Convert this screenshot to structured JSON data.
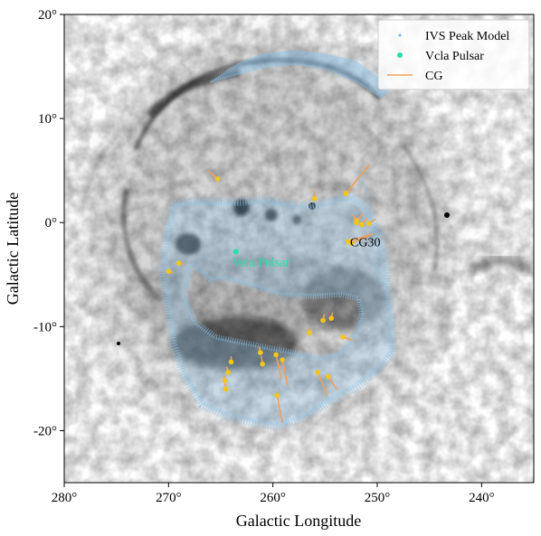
{
  "chart_data": {
    "type": "scatter",
    "title": "",
    "xlabel": "Galactic Longitude",
    "ylabel": "Galactic Latitude",
    "xlim": [
      280,
      235
    ],
    "ylim": [
      -25,
      20
    ],
    "x_ticks": [
      {
        "value": 280,
        "label": "280°"
      },
      {
        "value": 270,
        "label": "270°"
      },
      {
        "value": 260,
        "label": "260°"
      },
      {
        "value": 250,
        "label": "250°"
      },
      {
        "value": 240,
        "label": "240°"
      }
    ],
    "y_ticks": [
      {
        "value": 20,
        "label": "20°"
      },
      {
        "value": 10,
        "label": "10°"
      },
      {
        "value": 0,
        "label": "0°"
      },
      {
        "value": -10,
        "label": "-10°"
      },
      {
        "value": -20,
        "label": "-20°"
      }
    ],
    "grid": false,
    "legend_position": "top-right",
    "legend": [
      {
        "label": "IVS Peak Model",
        "marker": "small-dot",
        "color": "#7fc0f0"
      },
      {
        "label": "Vcla Pulsar",
        "marker": "dot",
        "color": "#22e0a8"
      },
      {
        "label": "CG",
        "marker": "line",
        "color": "#f2a05a"
      }
    ],
    "colors": {
      "ivs": "#88c4ef",
      "pulsar": "#22e0a8",
      "cg_head": "#f5c518",
      "cg_tail": "#f2a05a",
      "background_map": "#000000"
    },
    "series": [
      {
        "name": "Vcla Pulsar",
        "points": [
          {
            "l": 263.55,
            "b": -2.79
          }
        ]
      },
      {
        "name": "CG",
        "segments": [
          {
            "l": 265.3,
            "b": 4.2,
            "l2": 266.1,
            "b2": 4.9
          },
          {
            "l": 256.0,
            "b": 2.3,
            "l2": 256.1,
            "b2": 3.0
          },
          {
            "l": 253.0,
            "b": 2.8,
            "l2": 250.8,
            "b2": 5.5
          },
          {
            "l": 252.0,
            "b": 0.2,
            "l2": 251.4,
            "b2": 0.8
          },
          {
            "l": 251.5,
            "b": -0.2,
            "l2": 251.0,
            "b2": 0.4
          },
          {
            "l": 250.8,
            "b": -0.1,
            "l2": 250.2,
            "b2": 0.3
          },
          {
            "l": 252.0,
            "b": 0.0,
            "l2": 252.3,
            "b2": 0.7
          },
          {
            "l": 252.8,
            "b": -1.8,
            "l2": 250.4,
            "b2": -1.1
          },
          {
            "l": 252.5,
            "b": -2.0,
            "l2": 250.8,
            "b2": -1.3
          },
          {
            "l": 269.0,
            "b": -3.9,
            "l2": 268.5,
            "b2": -4.0
          },
          {
            "l": 270.0,
            "b": -4.7,
            "l2": 269.6,
            "b2": -4.8
          },
          {
            "l": 254.4,
            "b": -9.2,
            "l2": 254.3,
            "b2": -8.7
          },
          {
            "l": 255.2,
            "b": -9.4,
            "l2": 255.1,
            "b2": -8.9
          },
          {
            "l": 256.5,
            "b": -10.6,
            "l2": 256.6,
            "b2": -10.2
          },
          {
            "l": 253.3,
            "b": -11.0,
            "l2": 252.4,
            "b2": -11.3
          },
          {
            "l": 261.2,
            "b": -12.5,
            "l2": 261.3,
            "b2": -12.0
          },
          {
            "l": 261.0,
            "b": -13.6,
            "l2": 261.1,
            "b2": -12.9
          },
          {
            "l": 259.7,
            "b": -12.7,
            "l2": 259.2,
            "b2": -15.0
          },
          {
            "l": 259.1,
            "b": -13.2,
            "l2": 258.6,
            "b2": -15.6
          },
          {
            "l": 255.7,
            "b": -14.4,
            "l2": 254.8,
            "b2": -16.6
          },
          {
            "l": 254.7,
            "b": -14.8,
            "l2": 253.9,
            "b2": -16.0
          },
          {
            "l": 264.0,
            "b": -13.4,
            "l2": 264.0,
            "b2": -12.9
          },
          {
            "l": 264.3,
            "b": -14.4,
            "l2": 264.4,
            "b2": -13.9
          },
          {
            "l": 264.6,
            "b": -15.2,
            "l2": 264.7,
            "b2": -14.8
          },
          {
            "l": 264.5,
            "b": -16.0,
            "l2": 264.6,
            "b2": -15.5
          },
          {
            "l": 259.6,
            "b": -16.6,
            "l2": 259.1,
            "b2": -19.2
          }
        ]
      },
      {
        "name": "IVS Peak Model",
        "outer_ring": [
          [
            269.5,
            1.8
          ],
          [
            270.2,
            -1.0
          ],
          [
            270.6,
            -4.8
          ],
          [
            270.0,
            -8.5
          ],
          [
            269.6,
            -11.5
          ],
          [
            268.5,
            -14.8
          ],
          [
            266.8,
            -17.5
          ],
          [
            264.5,
            -18.6
          ],
          [
            262.0,
            -19.2
          ],
          [
            259.5,
            -19.6
          ],
          [
            257.0,
            -18.7
          ],
          [
            254.5,
            -17.2
          ],
          [
            252.0,
            -15.8
          ],
          [
            250.0,
            -14.3
          ],
          [
            248.5,
            -12.5
          ],
          [
            248.6,
            -9.5
          ],
          [
            249.0,
            -6.0
          ],
          [
            249.3,
            -3.0
          ],
          [
            249.8,
            -1.0
          ],
          [
            250.8,
            0.8
          ],
          [
            251.5,
            2.0
          ],
          [
            252.5,
            2.5
          ],
          [
            254.0,
            2.2
          ],
          [
            255.5,
            1.8
          ],
          [
            257.0,
            1.6
          ],
          [
            259.0,
            1.9
          ],
          [
            261.0,
            2.2
          ],
          [
            263.0,
            2.0
          ],
          [
            265.0,
            2.0
          ],
          [
            267.0,
            2.1
          ],
          [
            269.5,
            1.8
          ]
        ],
        "inner_ring": [
          [
            267.8,
            -4.0
          ],
          [
            266.0,
            -5.5
          ],
          [
            264.5,
            -5.4
          ],
          [
            262.0,
            -6.1
          ],
          [
            259.0,
            -7.0
          ],
          [
            256.0,
            -7.1
          ],
          [
            253.5,
            -6.9
          ],
          [
            251.8,
            -7.3
          ],
          [
            251.5,
            -8.8
          ],
          [
            252.0,
            -10.5
          ],
          [
            253.5,
            -12.5
          ],
          [
            255.5,
            -13.0
          ],
          [
            258.0,
            -12.5
          ],
          [
            260.5,
            -12.0
          ],
          [
            263.0,
            -11.5
          ],
          [
            265.5,
            -11.0
          ],
          [
            267.5,
            -9.5
          ],
          [
            268.5,
            -7.0
          ],
          [
            267.8,
            -4.0
          ]
        ],
        "top_arc": [
          [
            266.0,
            13.5
          ],
          [
            263.5,
            15.2
          ],
          [
            261.0,
            16.2
          ],
          [
            258.0,
            16.5
          ],
          [
            255.0,
            16.2
          ],
          [
            252.0,
            15.5
          ],
          [
            250.0,
            14.0
          ],
          [
            248.8,
            12.8
          ],
          [
            249.6,
            12.0
          ],
          [
            251.8,
            13.4
          ],
          [
            254.5,
            14.6
          ],
          [
            257.5,
            15.2
          ],
          [
            260.5,
            15.0
          ],
          [
            263.5,
            14.2
          ],
          [
            266.0,
            13.5
          ]
        ],
        "right_arc": [
          [
            252.0,
            5.0
          ],
          [
            251.0,
            3.0
          ],
          [
            250.6,
            0.5
          ],
          [
            250.4,
            -2.0
          ],
          [
            250.2,
            -4.0
          ],
          [
            249.6,
            -6.0
          ]
        ]
      }
    ],
    "annotations": [
      {
        "text": "CG30",
        "l": 252.6,
        "b": -2.3,
        "color": "#000000"
      },
      {
        "text": "Vela Pulsar",
        "l": 263.9,
        "b": -4.2,
        "color": "#22e0a8"
      }
    ]
  }
}
